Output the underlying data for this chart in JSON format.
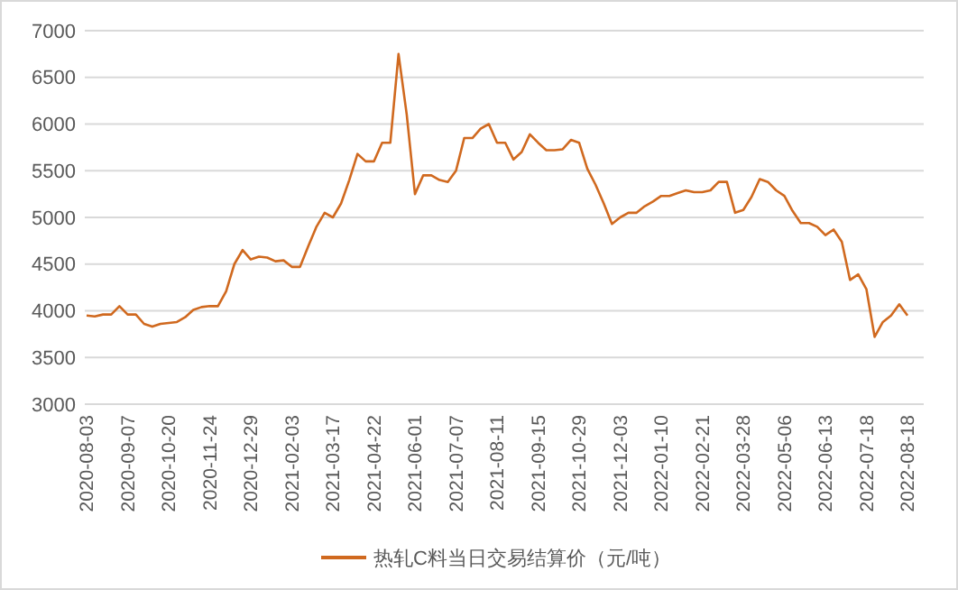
{
  "chart_data": {
    "type": "line",
    "categories": [
      "2020-08-03",
      null,
      null,
      null,
      null,
      "2020-09-07",
      null,
      null,
      null,
      null,
      "2020-10-20",
      null,
      null,
      null,
      null,
      "2020-11-24",
      null,
      null,
      null,
      null,
      "2020-12-29",
      null,
      null,
      null,
      null,
      "2021-02-03",
      null,
      null,
      null,
      null,
      "2021-03-17",
      null,
      null,
      null,
      null,
      "2021-04-22",
      null,
      null,
      null,
      null,
      "2021-06-01",
      null,
      null,
      null,
      null,
      "2021-07-07",
      null,
      null,
      null,
      null,
      "2021-08-11",
      null,
      null,
      null,
      null,
      "2021-09-15",
      null,
      null,
      null,
      null,
      "2021-10-29",
      null,
      null,
      null,
      null,
      "2021-12-03",
      null,
      null,
      null,
      null,
      "2022-01-10",
      null,
      null,
      null,
      null,
      "2022-02-21",
      null,
      null,
      null,
      null,
      "2022-03-28",
      null,
      null,
      null,
      null,
      "2022-05-06",
      null,
      null,
      null,
      null,
      "2022-06-13",
      null,
      null,
      null,
      null,
      "2022-07-18",
      null,
      null,
      null,
      null,
      "2022-08-18"
    ],
    "series": [
      {
        "name": "热轧C料当日交易结算价（元/吨）",
        "color": "#d0691f",
        "values": [
          3950,
          3940,
          3960,
          3960,
          4050,
          3960,
          3960,
          3860,
          3830,
          3860,
          3870,
          3880,
          3930,
          4010,
          4040,
          4050,
          4050,
          4210,
          4500,
          4650,
          4550,
          4580,
          4570,
          4530,
          4540,
          4470,
          4470,
          4690,
          4900,
          5050,
          5000,
          5150,
          5400,
          5680,
          5600,
          5600,
          5800,
          5800,
          6750,
          6100,
          5250,
          5450,
          5450,
          5400,
          5380,
          5500,
          5850,
          5850,
          5950,
          6000,
          5800,
          5800,
          5620,
          5700,
          5890,
          5800,
          5720,
          5720,
          5730,
          5830,
          5800,
          5520,
          5350,
          5150,
          4930,
          5000,
          5050,
          5050,
          5120,
          5170,
          5230,
          5230,
          5260,
          5290,
          5270,
          5270,
          5290,
          5380,
          5380,
          5050,
          5080,
          5220,
          5410,
          5380,
          5290,
          5230,
          5070,
          4940,
          4940,
          4900,
          4810,
          4870,
          4740,
          4330,
          4390,
          4230,
          3720,
          3880,
          3950,
          4070,
          3950
        ]
      }
    ],
    "ylim": [
      3000,
      7000
    ],
    "yticks": [
      3000,
      3500,
      4000,
      4500,
      5000,
      5500,
      6000,
      6500,
      7000
    ],
    "grid": "y",
    "legend": "bottom"
  }
}
